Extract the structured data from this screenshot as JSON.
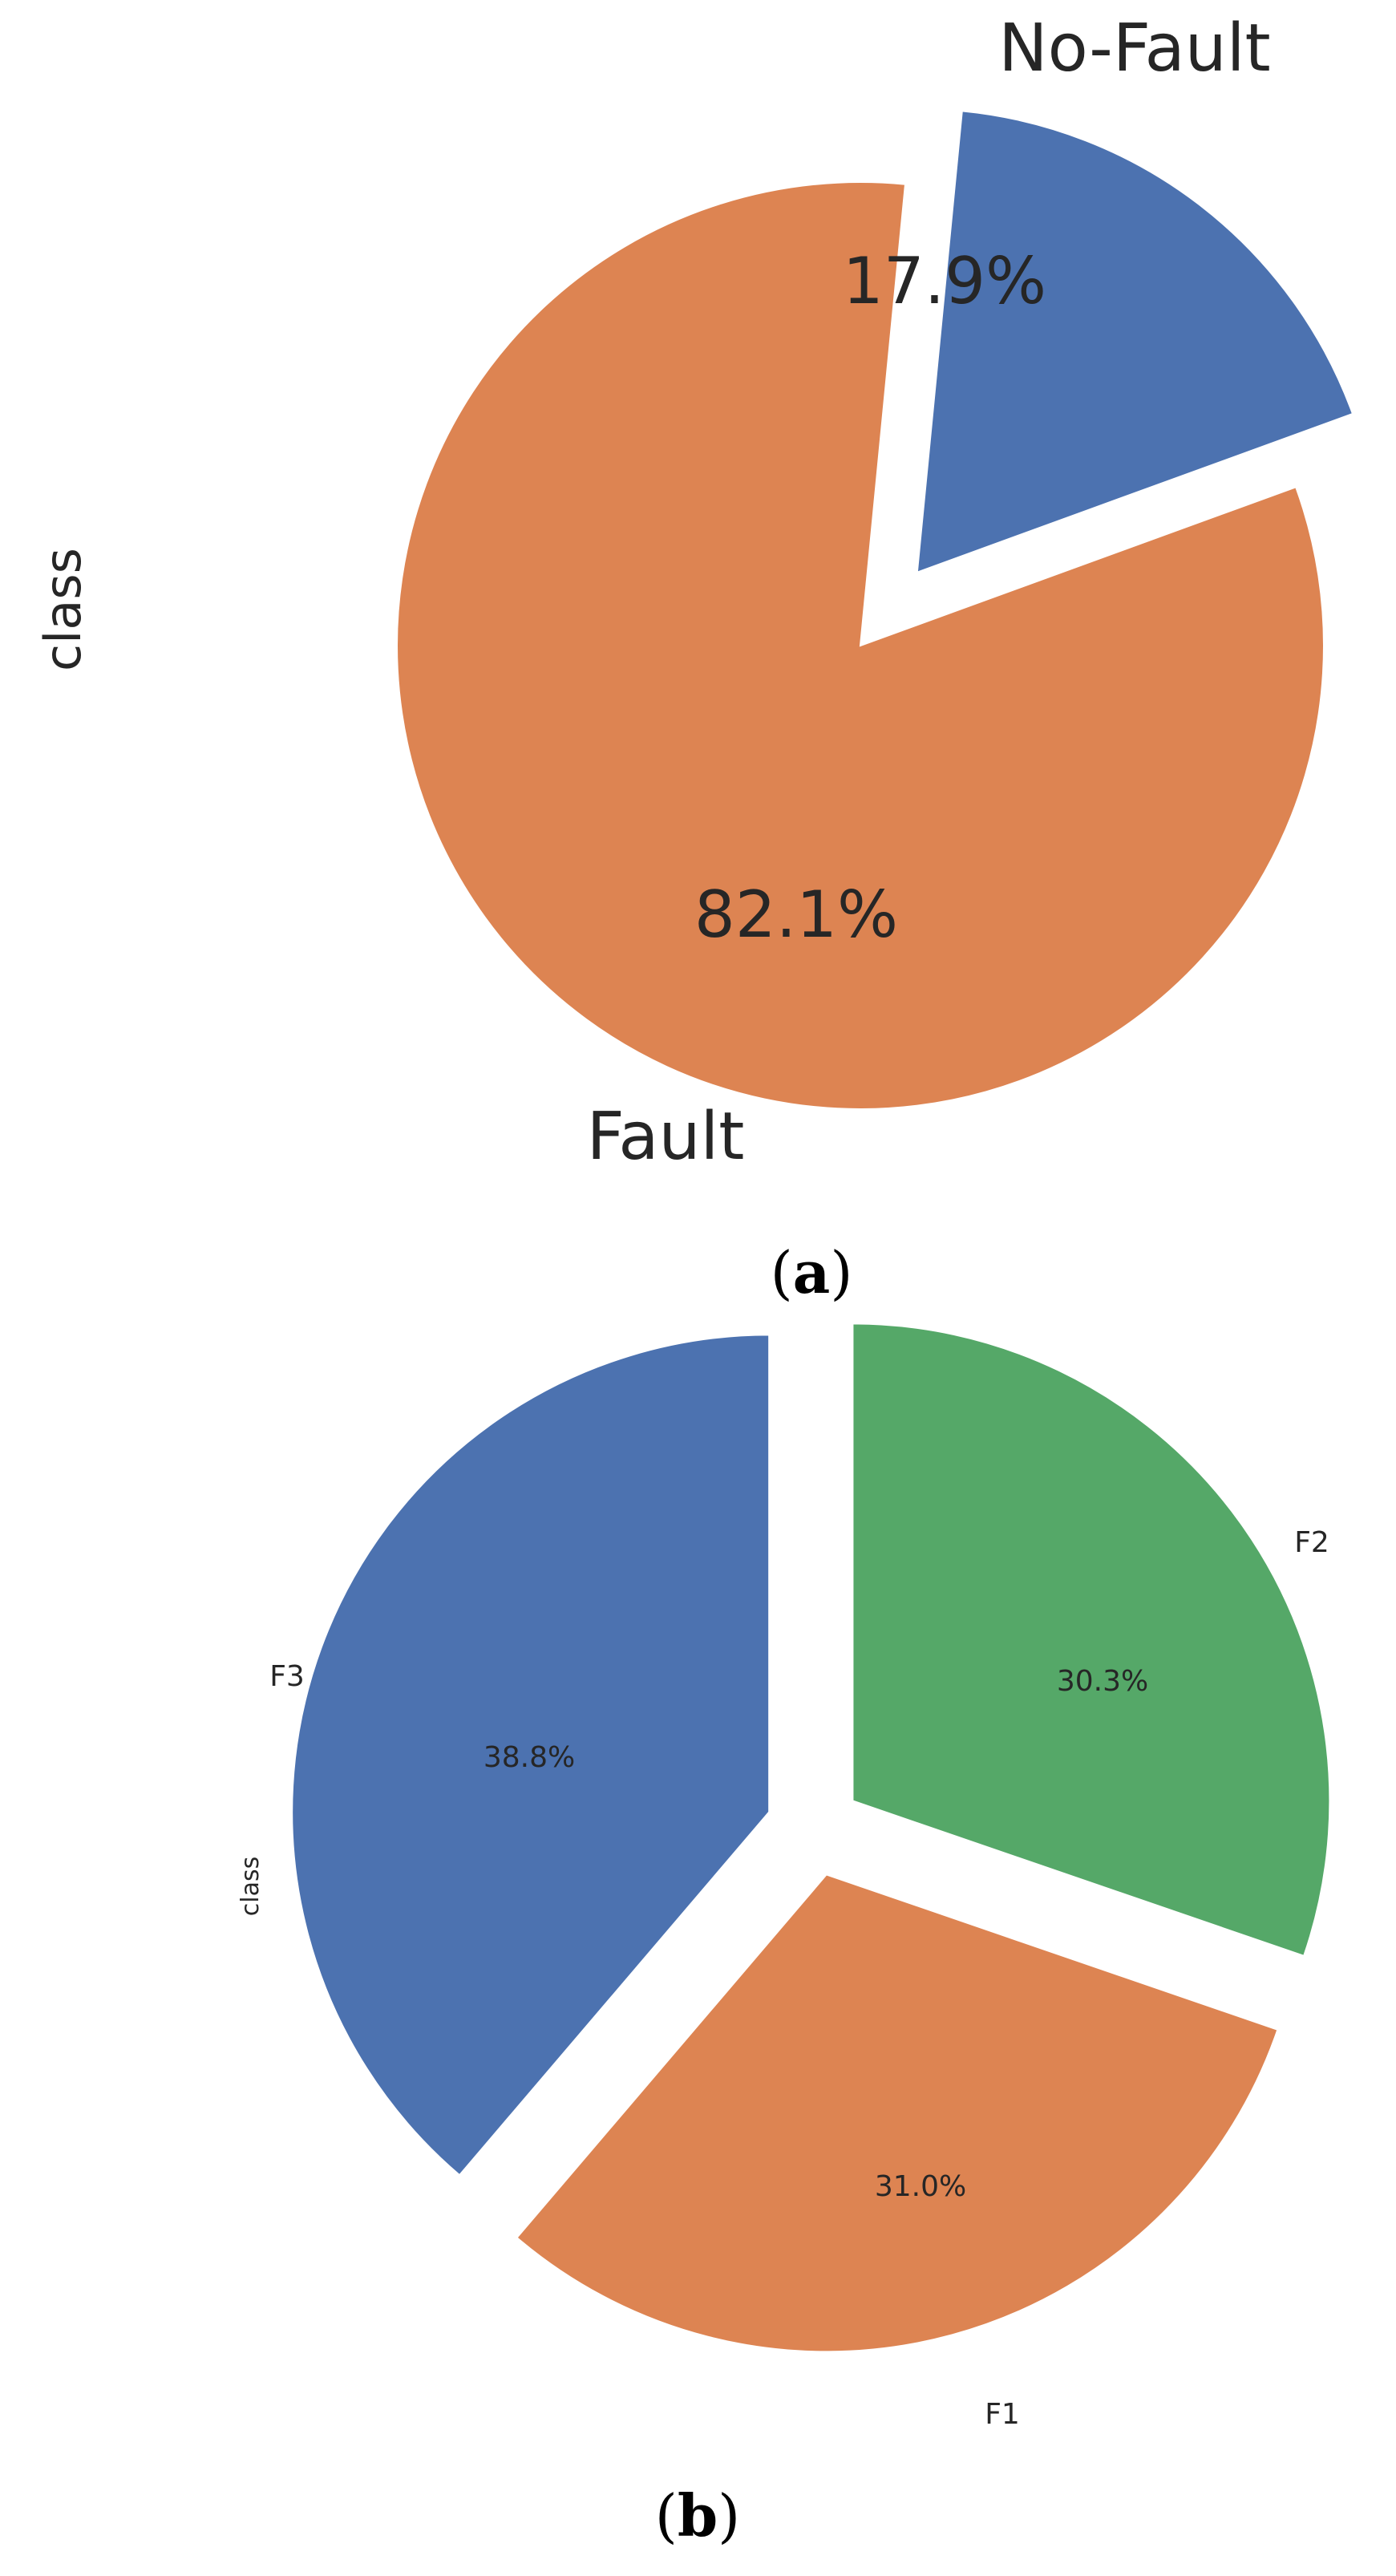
{
  "chart_data": [
    {
      "type": "pie",
      "ylabel": "class",
      "categories": [
        "No-Fault",
        "Fault"
      ],
      "values": [
        17.9,
        82.1
      ],
      "value_labels": [
        "17.9%",
        "82.1%"
      ],
      "colors": [
        "#4c72b0",
        "#dd8452"
      ],
      "explode": [
        0.2,
        0
      ],
      "start_angle_deg": 20,
      "caption_letter": "a"
    },
    {
      "type": "pie",
      "ylabel": "class",
      "categories": [
        "F3",
        "F1",
        "F2"
      ],
      "values": [
        38.8,
        31.0,
        30.3
      ],
      "value_labels": [
        "38.8%",
        "31.0%",
        "30.3%"
      ],
      "colors": [
        "#4c72b0",
        "#dd8452",
        "#55a868"
      ],
      "explode": [
        0.1,
        0.1,
        0.1
      ],
      "start_angle_deg": 90,
      "caption_letter": "b"
    }
  ]
}
